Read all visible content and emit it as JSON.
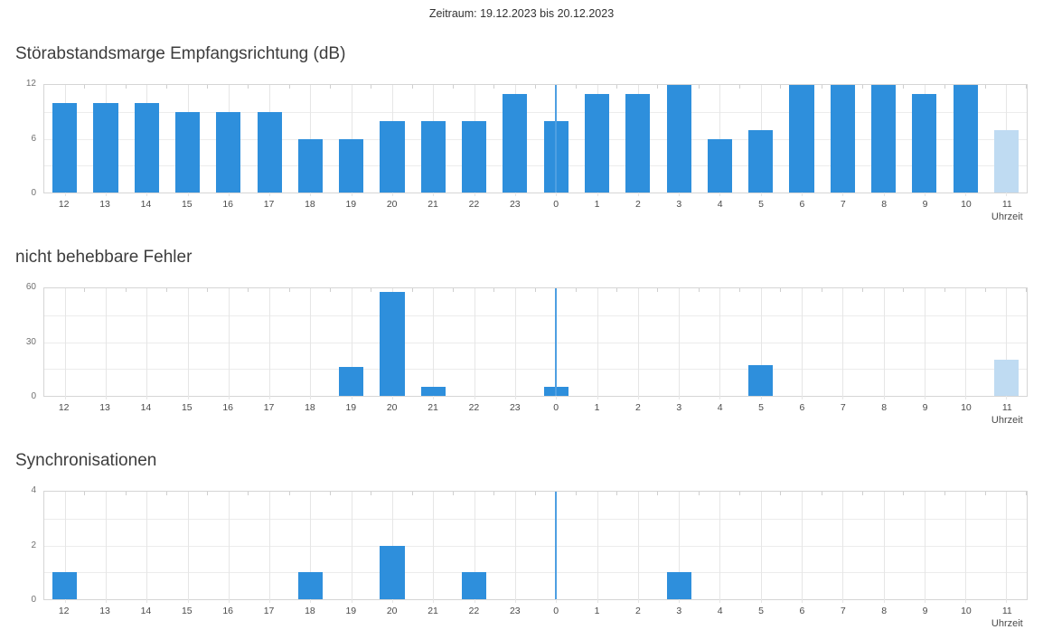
{
  "header": {
    "zeitraum": "Zeitraum: 19.12.2023 bis 20.12.2023"
  },
  "colors": {
    "bar": "#2e8fdc",
    "bar_light": "#bfdbf2",
    "day_boundary_line": "#4e9fe2"
  },
  "x_axis_unit_label": "Uhrzeit",
  "hours": [
    "12",
    "13",
    "14",
    "15",
    "16",
    "17",
    "18",
    "19",
    "20",
    "21",
    "22",
    "23",
    "0",
    "1",
    "2",
    "3",
    "4",
    "5",
    "6",
    "7",
    "8",
    "9",
    "10",
    "11"
  ],
  "day_boundary_index": 12,
  "current_hour_index": 23,
  "charts": [
    {
      "title": "Störabstandsmarge Empfangsrichtung (dB)",
      "y_max": 12,
      "y_ticks": [
        "12",
        "6",
        "0"
      ],
      "values": [
        10,
        10,
        10,
        9,
        9,
        9,
        6,
        6,
        8,
        8,
        8,
        11,
        8,
        11,
        11,
        12,
        6,
        7,
        12,
        12,
        12,
        11,
        12,
        7
      ]
    },
    {
      "title": "nicht behebbare Fehler",
      "y_max": 60,
      "y_ticks": [
        "60",
        "30",
        "0"
      ],
      "values": [
        0,
        0,
        0,
        0,
        0,
        0,
        0,
        16,
        58,
        5,
        0,
        0,
        5,
        0,
        0,
        0,
        0,
        17,
        0,
        0,
        0,
        0,
        0,
        20
      ]
    },
    {
      "title": "Synchronisationen",
      "y_max": 4,
      "y_ticks": [
        "4",
        "2",
        "0"
      ],
      "values": [
        1,
        0,
        0,
        0,
        0,
        0,
        1,
        0,
        2,
        0,
        1,
        0,
        0,
        0,
        0,
        1,
        0,
        0,
        0,
        0,
        0,
        0,
        0,
        0
      ]
    }
  ],
  "chart_data": [
    {
      "type": "bar",
      "title": "Störabstandsmarge Empfangsrichtung (dB)",
      "categories": [
        "12",
        "13",
        "14",
        "15",
        "16",
        "17",
        "18",
        "19",
        "20",
        "21",
        "22",
        "23",
        "0",
        "1",
        "2",
        "3",
        "4",
        "5",
        "6",
        "7",
        "8",
        "9",
        "10",
        "11"
      ],
      "values": [
        10,
        10,
        10,
        9,
        9,
        9,
        6,
        6,
        8,
        8,
        8,
        11,
        8,
        11,
        11,
        12,
        6,
        7,
        12,
        12,
        12,
        11,
        12,
        7
      ],
      "xlabel": "Uhrzeit",
      "ylabel": "",
      "ylim": [
        0,
        12
      ],
      "y_tick_labels": [
        "0",
        "6",
        "12"
      ],
      "grid": true,
      "annotations": [
        "vertical day-boundary line at hour 0",
        "bar for hour 11 shown in light blue (current/incomplete hour)"
      ]
    },
    {
      "type": "bar",
      "title": "nicht behebbare Fehler",
      "categories": [
        "12",
        "13",
        "14",
        "15",
        "16",
        "17",
        "18",
        "19",
        "20",
        "21",
        "22",
        "23",
        "0",
        "1",
        "2",
        "3",
        "4",
        "5",
        "6",
        "7",
        "8",
        "9",
        "10",
        "11"
      ],
      "values": [
        0,
        0,
        0,
        0,
        0,
        0,
        0,
        16,
        58,
        5,
        0,
        0,
        5,
        0,
        0,
        0,
        0,
        17,
        0,
        0,
        0,
        0,
        0,
        20
      ],
      "xlabel": "Uhrzeit",
      "ylabel": "",
      "ylim": [
        0,
        60
      ],
      "y_tick_labels": [
        "0",
        "30",
        "60"
      ],
      "grid": true,
      "annotations": [
        "vertical day-boundary line at hour 0",
        "bar for hour 11 shown in light blue (current/incomplete hour)"
      ]
    },
    {
      "type": "bar",
      "title": "Synchronisationen",
      "categories": [
        "12",
        "13",
        "14",
        "15",
        "16",
        "17",
        "18",
        "19",
        "20",
        "21",
        "22",
        "23",
        "0",
        "1",
        "2",
        "3",
        "4",
        "5",
        "6",
        "7",
        "8",
        "9",
        "10",
        "11"
      ],
      "values": [
        1,
        0,
        0,
        0,
        0,
        0,
        1,
        0,
        2,
        0,
        1,
        0,
        0,
        0,
        0,
        1,
        0,
        0,
        0,
        0,
        0,
        0,
        0,
        0
      ],
      "xlabel": "Uhrzeit",
      "ylabel": "",
      "ylim": [
        0,
        4
      ],
      "y_tick_labels": [
        "0",
        "2",
        "4"
      ],
      "grid": true,
      "annotations": [
        "vertical day-boundary line at hour 0"
      ]
    }
  ]
}
